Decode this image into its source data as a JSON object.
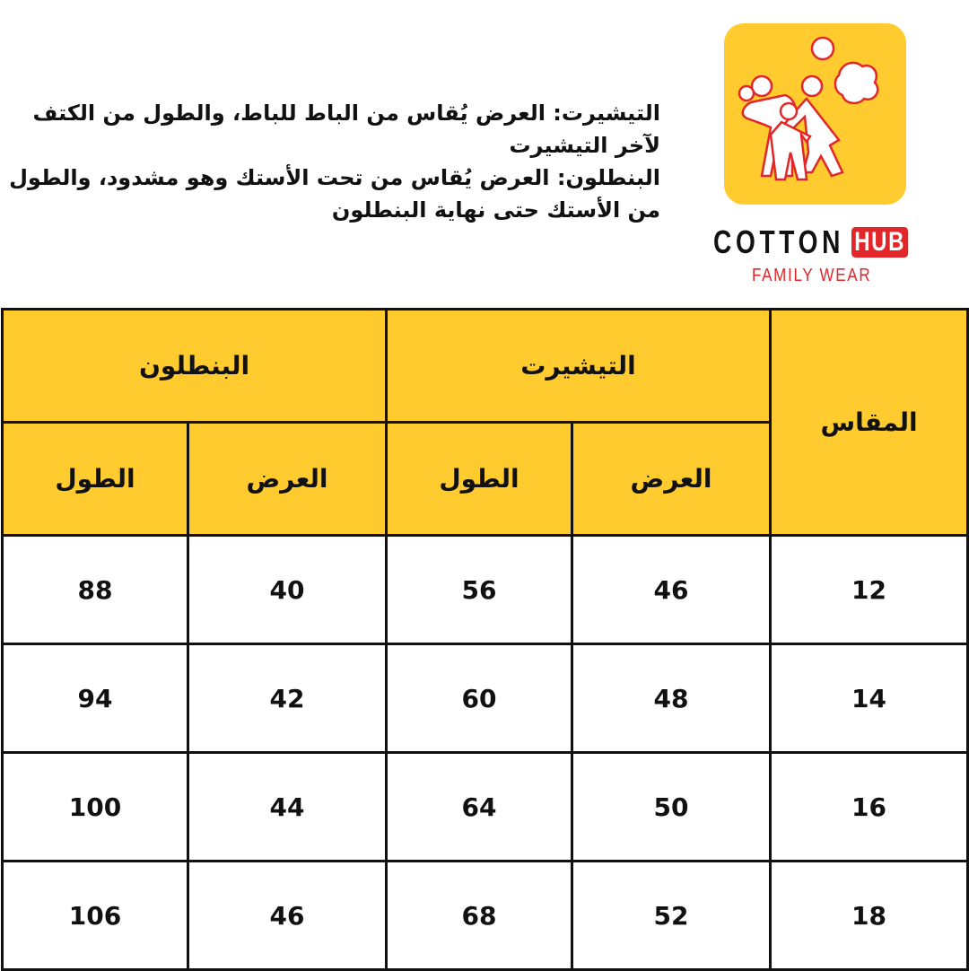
{
  "notes": {
    "tshirt": "التيشيرت: العرض يُقاس من الباط للباط، والطول من الكتف لآخر التيشيرت",
    "pants": "البنطلون: العرض يُقاس من تحت الأستك وهو مشدود، والطول من الأستك حتى نهاية البنطلون"
  },
  "logo": {
    "brand_main": "COTTON",
    "brand_accent": "HUB",
    "tagline": "FAMILY WEAR",
    "colors": {
      "yellow": "#FFCB2F",
      "red": "#E2262A"
    }
  },
  "table": {
    "size_header": "المقاس",
    "groups": [
      "التيشيرت",
      "البنطلون"
    ],
    "sub_headers": [
      "العرض",
      "الطول",
      "العرض",
      "الطول"
    ],
    "rows": [
      [
        "12",
        "46",
        "56",
        "40",
        "88"
      ],
      [
        "14",
        "48",
        "60",
        "42",
        "94"
      ],
      [
        "16",
        "50",
        "64",
        "44",
        "100"
      ],
      [
        "18",
        "52",
        "68",
        "46",
        "106"
      ]
    ]
  }
}
